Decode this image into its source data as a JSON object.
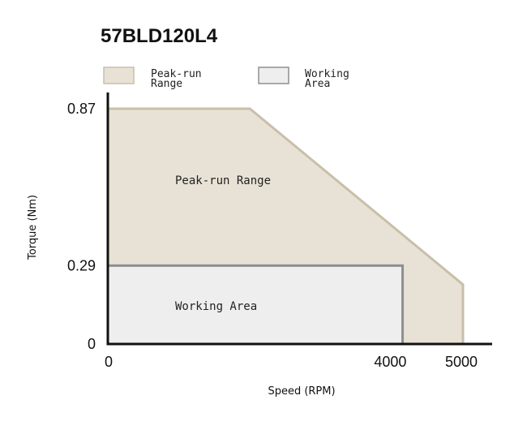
{
  "chart_data": {
    "type": "area",
    "title": "57BLD120L4",
    "xlabel": "Speed (RPM)",
    "ylabel": "Torque (Nm)",
    "xlim": [
      0,
      5000
    ],
    "ylim": [
      0,
      0.87
    ],
    "x_ticks": [
      "0",
      "4000",
      "5000"
    ],
    "y_ticks": [
      "0",
      "0.29",
      "0.87"
    ],
    "legend_position": "top-left",
    "grid": false,
    "series": [
      {
        "name": "Peak-run Range",
        "legend_lines": [
          "Peak-run",
          "Range"
        ],
        "region_label": "Peak-run Range",
        "fill": "#e8e2d6",
        "stroke": "#c9bfa9",
        "points": [
          [
            0,
            0
          ],
          [
            0,
            0.87
          ],
          [
            2000,
            0.87
          ],
          [
            5000,
            0.22
          ],
          [
            5000,
            0
          ]
        ]
      },
      {
        "name": "Working Area",
        "legend_lines": [
          "Working",
          "Area"
        ],
        "region_label": "Working Area",
        "fill": "#eeeeef",
        "stroke": "#8f8f8f",
        "points": [
          [
            0,
            0
          ],
          [
            0,
            0.29
          ],
          [
            4150,
            0.29
          ],
          [
            4150,
            0
          ]
        ]
      }
    ],
    "colors": {
      "axis": "#111111"
    }
  }
}
